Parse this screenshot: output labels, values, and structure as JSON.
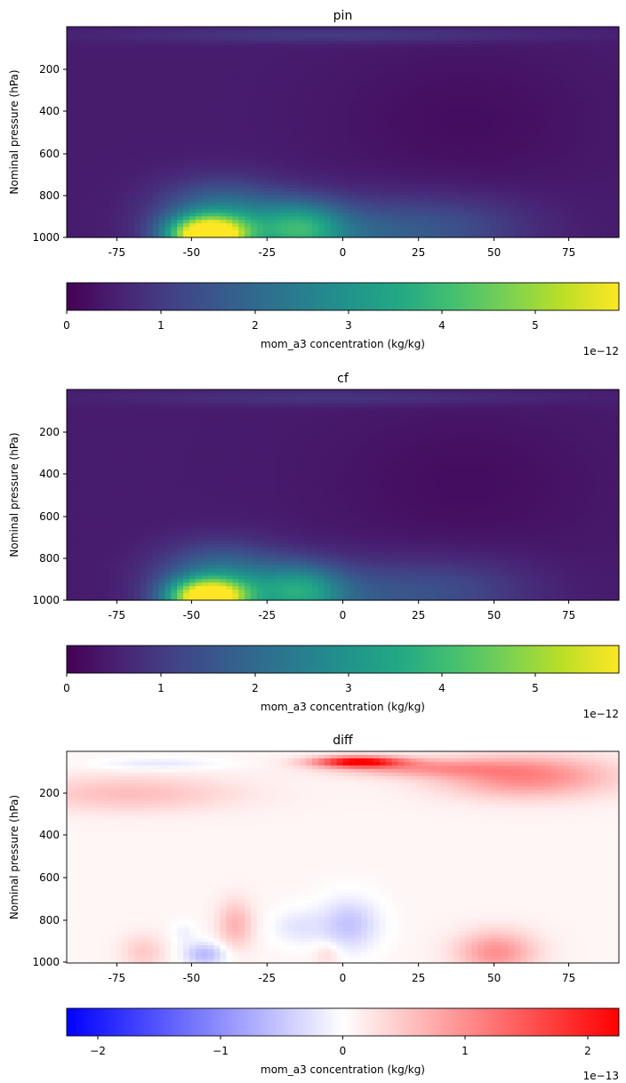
{
  "chart_data": [
    {
      "type": "heatmap",
      "title": "pin",
      "ylabel": "Nominal pressure (hPa)",
      "xlabel": "",
      "xlim": [
        -90,
        90
      ],
      "ylim": [
        1000,
        0
      ],
      "xticks": [
        -75,
        -50,
        -25,
        0,
        25,
        50,
        75
      ],
      "yticks": [
        200,
        400,
        600,
        800,
        1000
      ],
      "colormap": "viridis",
      "colorbar": {
        "label": "mom_a3 concentration (kg/kg)",
        "range": [
          0,
          5.85
        ],
        "ticks": [
          0,
          1,
          2,
          3,
          4,
          5
        ],
        "offset_text": "1e−12"
      },
      "features": [
        {
          "lat": -44,
          "p": 990,
          "value": 5.8
        },
        {
          "lat": -14,
          "p": 960,
          "value": 2.4
        },
        {
          "lat": 5,
          "p": 990,
          "value": 1.3
        },
        {
          "lat": 0,
          "p": 40,
          "value": 0.6
        }
      ]
    },
    {
      "type": "heatmap",
      "title": "cf",
      "ylabel": "Nominal pressure (hPa)",
      "xlabel": "",
      "xlim": [
        -90,
        90
      ],
      "ylim": [
        1000,
        0
      ],
      "xticks": [
        -75,
        -50,
        -25,
        0,
        25,
        50,
        75
      ],
      "yticks": [
        200,
        400,
        600,
        800,
        1000
      ],
      "colormap": "viridis",
      "colorbar": {
        "label": "mom_a3 concentration (kg/kg)",
        "range": [
          0,
          5.85
        ],
        "ticks": [
          0,
          1,
          2,
          3,
          4,
          5
        ],
        "offset_text": "1e−12"
      },
      "features": [
        {
          "lat": -44,
          "p": 990,
          "value": 5.8
        },
        {
          "lat": -14,
          "p": 960,
          "value": 2.3
        },
        {
          "lat": 5,
          "p": 990,
          "value": 1.1
        },
        {
          "lat": 0,
          "p": 40,
          "value": 0.5
        }
      ]
    },
    {
      "type": "heatmap",
      "title": "diff",
      "ylabel": "Nominal pressure (hPa)",
      "xlabel": "",
      "xlim": [
        -90,
        90
      ],
      "ylim": [
        1000,
        0
      ],
      "xticks": [
        -75,
        -50,
        -25,
        0,
        25,
        50,
        75
      ],
      "yticks": [
        200,
        400,
        600,
        800,
        1000
      ],
      "colormap": "bwr",
      "colorbar": {
        "label": "mom_a3 concentration (kg/kg)",
        "range": [
          -2.25,
          2.25
        ],
        "ticks": [
          -2,
          -1,
          0,
          1,
          2
        ],
        "tick_labels": [
          "−2",
          "−1",
          "0",
          "1",
          "2"
        ],
        "offset_text": "1e−13"
      },
      "features": [
        {
          "lat": 5,
          "p": 50,
          "value": 2.2
        },
        {
          "lat": 60,
          "p": 120,
          "value": 1.0
        },
        {
          "lat": -60,
          "p": 60,
          "value": -0.3
        },
        {
          "lat": 2,
          "p": 820,
          "value": -0.6
        },
        {
          "lat": -45,
          "p": 960,
          "value": -0.7
        },
        {
          "lat": 50,
          "p": 950,
          "value": 0.9
        },
        {
          "lat": -35,
          "p": 820,
          "value": 0.6
        }
      ]
    }
  ]
}
